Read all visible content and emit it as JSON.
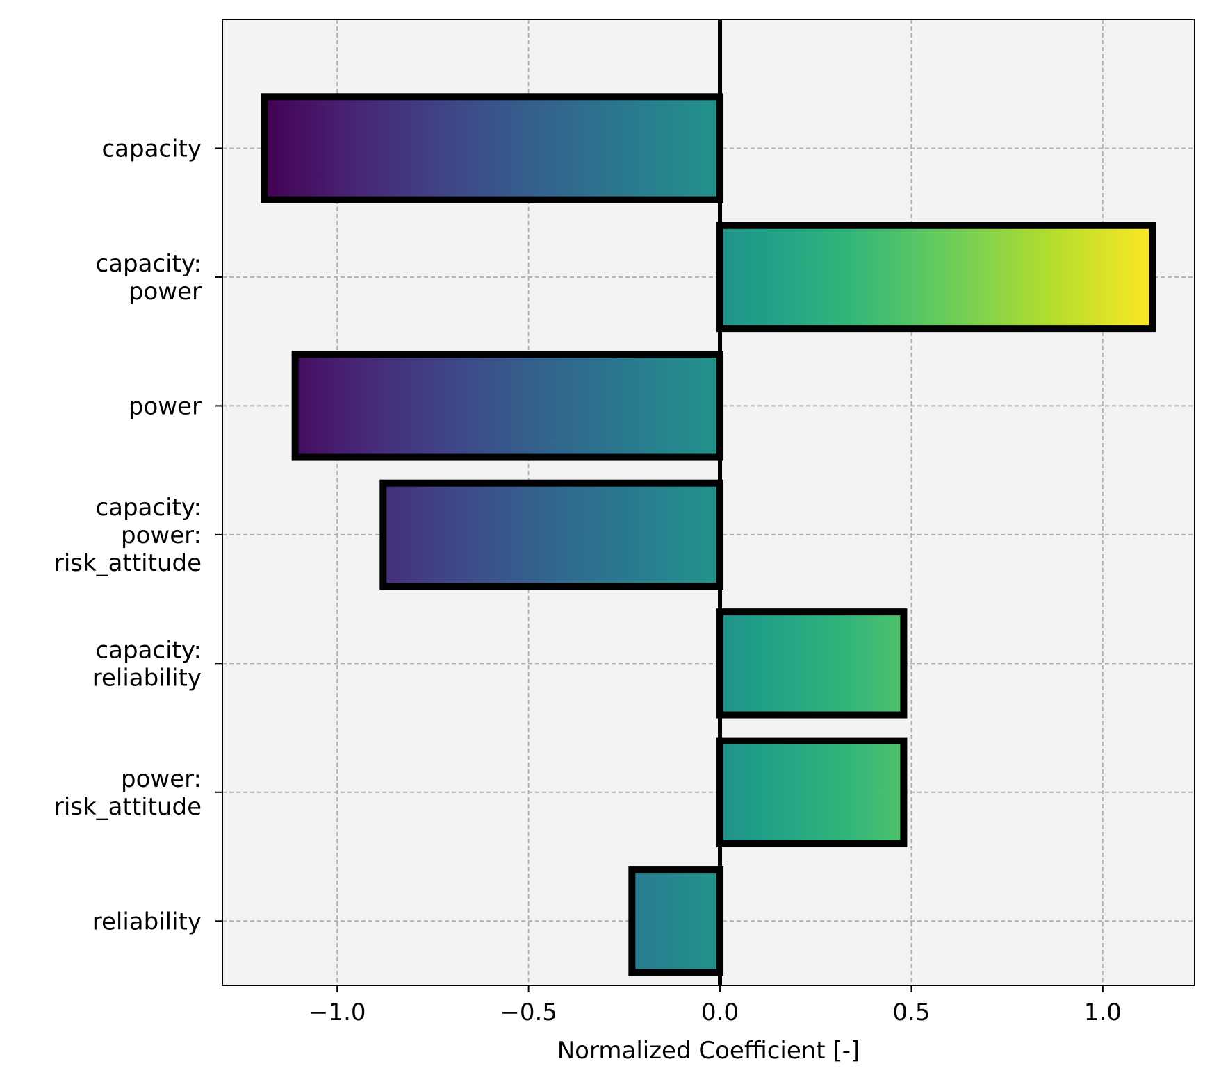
{
  "chart_data": {
    "type": "bar",
    "orientation": "horizontal",
    "title": "",
    "xlabel": "Normalized Coefficient [-]",
    "ylabel": "",
    "xlim": [
      -1.3,
      1.24
    ],
    "xticks": [
      -1.0,
      -0.5,
      0.0,
      0.5,
      1.0
    ],
    "xtick_labels": [
      "−1.0",
      "−0.5",
      "0.0",
      "0.5",
      "1.0"
    ],
    "grid": true,
    "colormap": "viridis",
    "categories": [
      [
        "capacity"
      ],
      [
        "capacity:",
        "power"
      ],
      [
        "power"
      ],
      [
        "capacity:",
        "power:",
        "risk_attitude"
      ],
      [
        "capacity:",
        "reliability"
      ],
      [
        "power:",
        "risk_attitude"
      ],
      [
        "reliability"
      ]
    ],
    "values": [
      -1.19,
      1.13,
      -1.11,
      -0.88,
      0.48,
      0.48,
      -0.23
    ]
  }
}
